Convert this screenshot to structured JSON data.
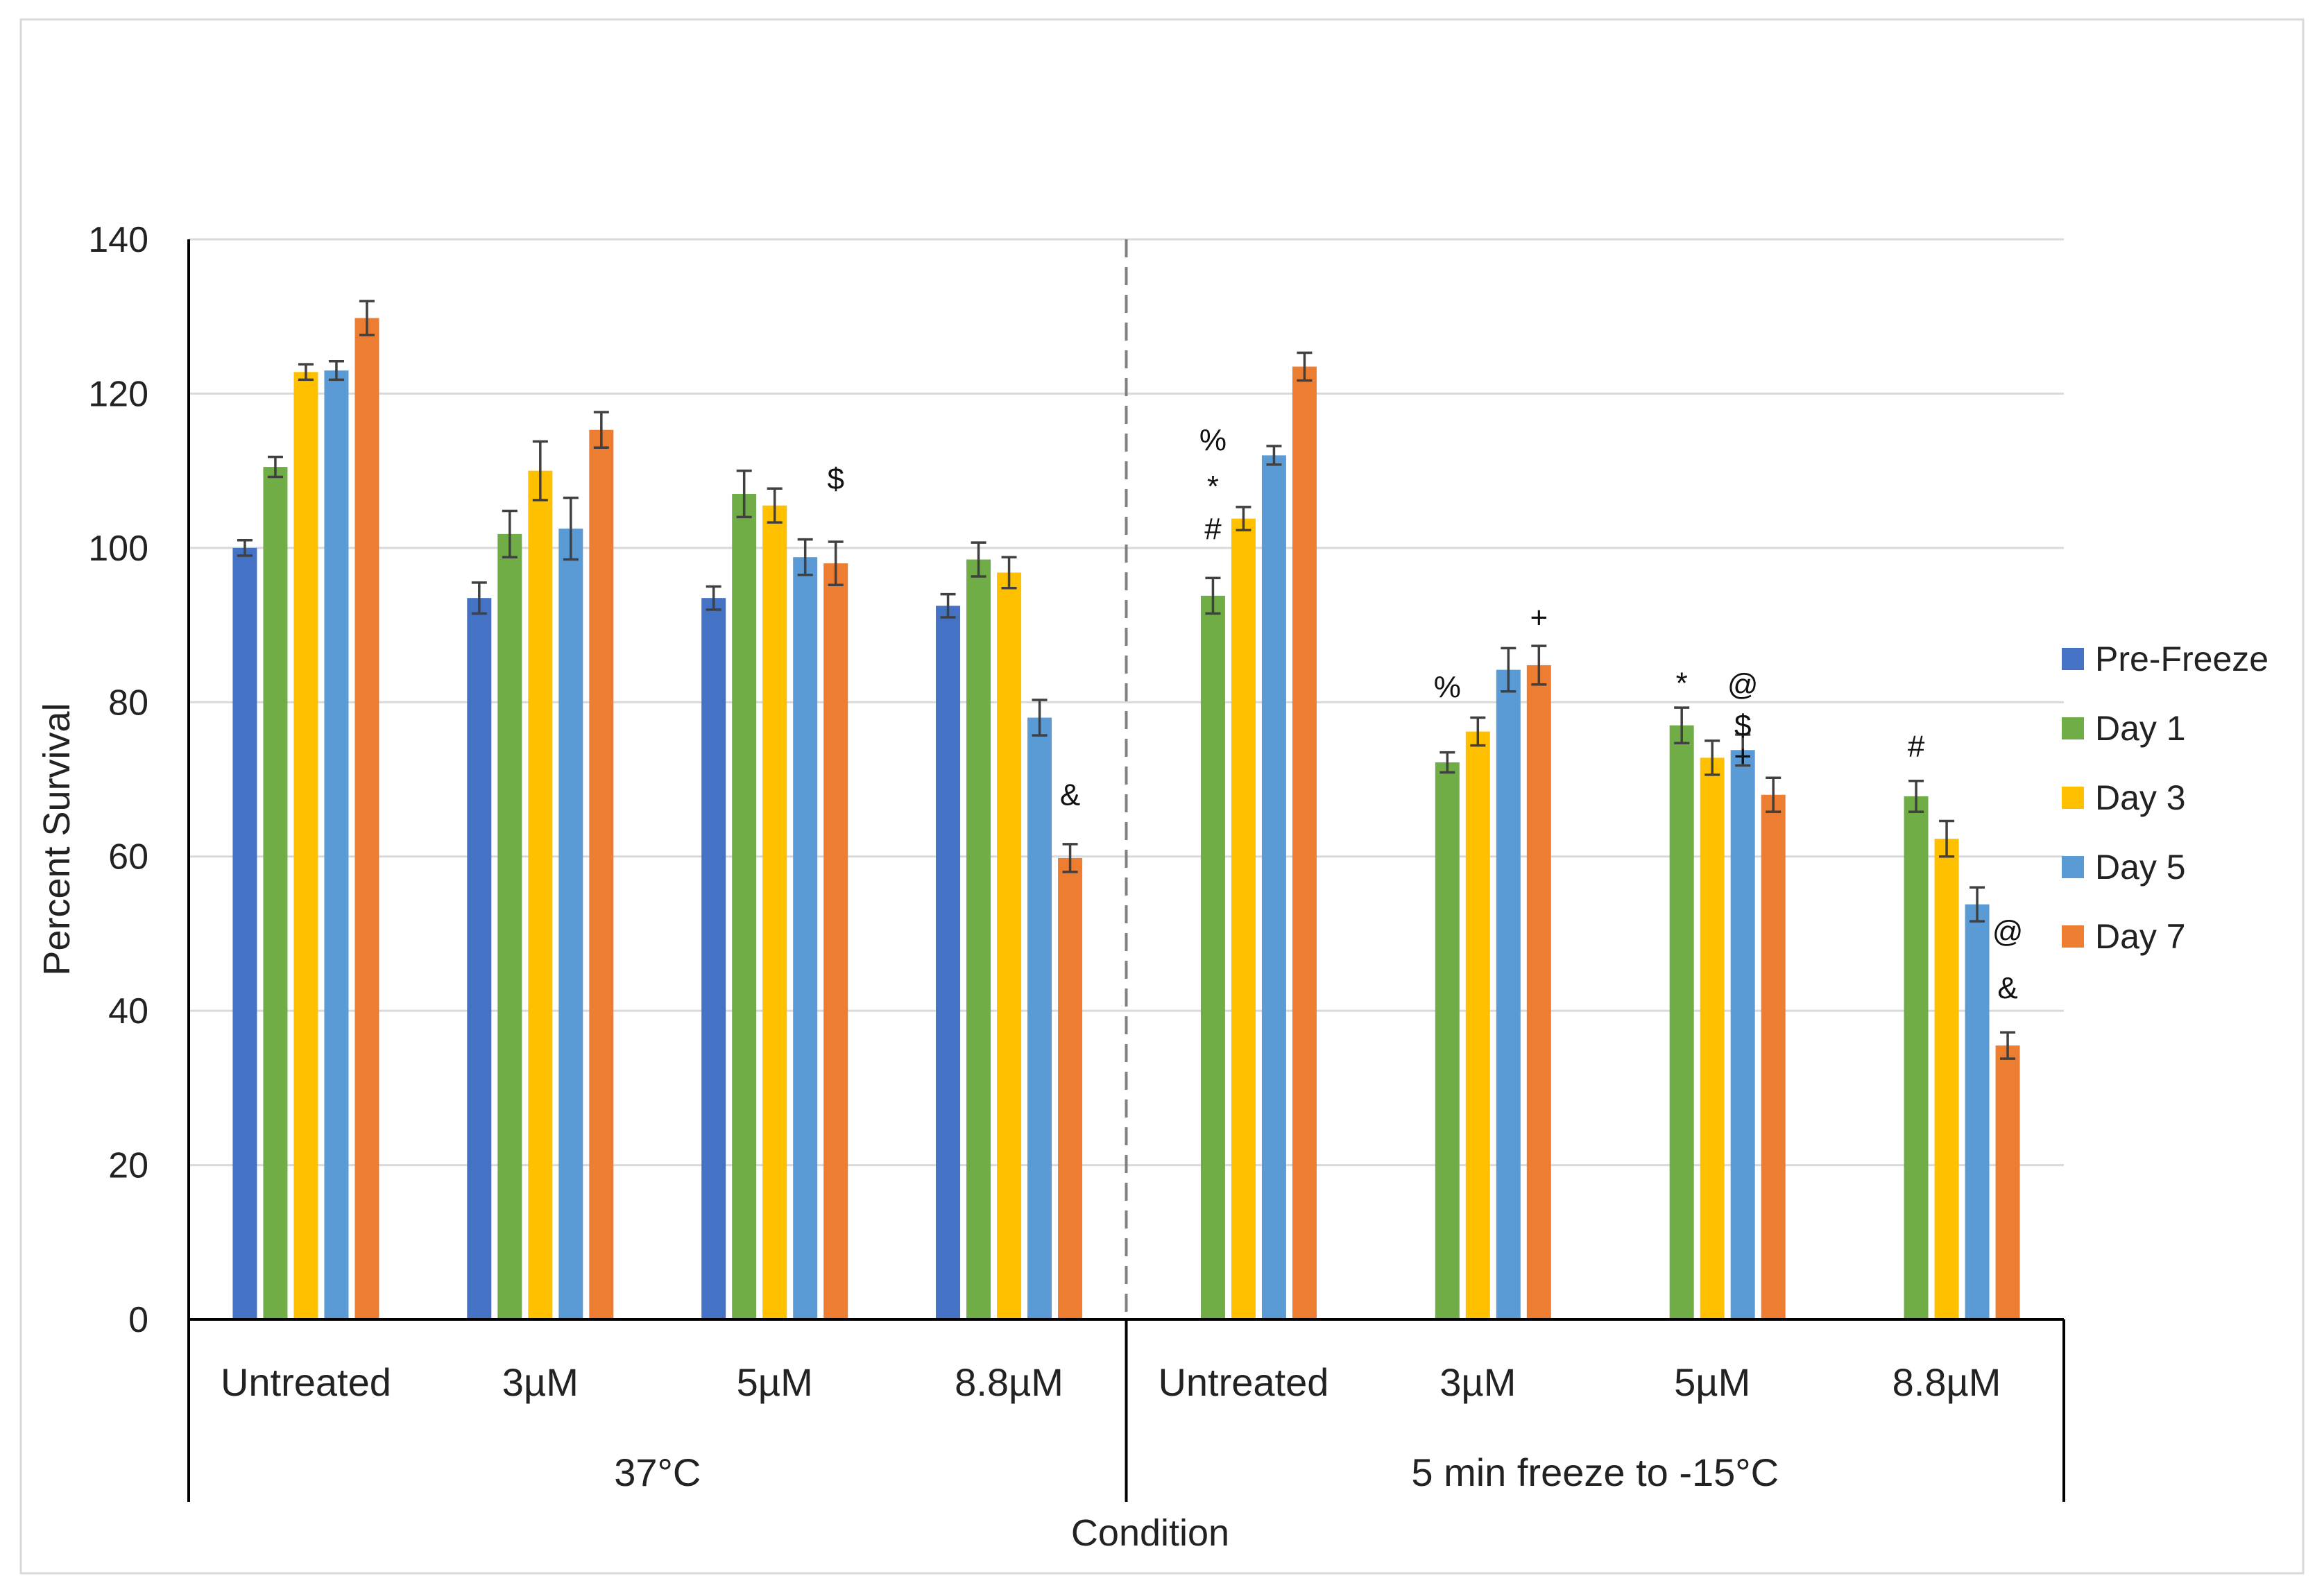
{
  "chart_data": {
    "type": "bar",
    "title": "",
    "xlabel": "Condition",
    "ylabel": "Percent Survival",
    "ylim": [
      0,
      140
    ],
    "yticks": [
      0,
      20,
      40,
      60,
      80,
      100,
      120,
      140
    ],
    "grid": true,
    "legend_position": "right",
    "groups": [
      {
        "label": "37°C",
        "categories": [
          "Untreated",
          "3µM",
          "5µM",
          "8.8µM"
        ]
      },
      {
        "label": "5 min freeze to -15°C",
        "categories": [
          "Untreated",
          "3µM",
          "5µM",
          "8.8µM"
        ]
      }
    ],
    "categories": [
      "Untreated",
      "3µM",
      "5µM",
      "8.8µM",
      "Untreated",
      "3µM",
      "5µM",
      "8.8µM"
    ],
    "series": [
      {
        "name": "Pre-Freeze",
        "color": "#4472C4",
        "values": [
          100,
          93.5,
          93.5,
          92.5,
          null,
          null,
          null,
          null
        ],
        "errors": [
          1,
          2,
          1.5,
          1.5,
          null,
          null,
          null,
          null
        ]
      },
      {
        "name": "Day 1",
        "color": "#70AD47",
        "values": [
          110.5,
          101.8,
          107,
          98.5,
          93.8,
          72.2,
          77,
          67.8
        ],
        "errors": [
          1.3,
          3,
          3,
          2.2,
          2.3,
          1.3,
          2.3,
          2
        ]
      },
      {
        "name": "Day 3",
        "color": "#FFC000",
        "values": [
          122.8,
          110,
          105.5,
          96.8,
          103.8,
          76.2,
          72.8,
          62.3
        ],
        "errors": [
          1,
          3.8,
          2.2,
          2,
          1.5,
          1.8,
          2.2,
          2.3
        ]
      },
      {
        "name": "Day 5",
        "color": "#5B9BD5",
        "values": [
          123,
          102.5,
          98.8,
          78,
          112,
          84.2,
          73.8,
          53.8
        ],
        "errors": [
          1.2,
          4,
          2.3,
          2.3,
          1.2,
          2.8,
          2,
          2.2
        ]
      },
      {
        "name": "Day 7",
        "color": "#ED7D31",
        "values": [
          129.8,
          115.3,
          98,
          59.8,
          123.5,
          84.8,
          68,
          35.5
        ],
        "errors": [
          2.2,
          2.3,
          2.8,
          1.8,
          1.8,
          2.5,
          2.2,
          1.7
        ]
      }
    ],
    "annotations": [
      {
        "text": "$",
        "category_index": 2,
        "series": "Day 7",
        "y": 109
      },
      {
        "text": "&",
        "category_index": 3,
        "series": "Day 7",
        "y": 68
      },
      {
        "text": "%",
        "category_index": 4,
        "series": "Day 1",
        "y": 114
      },
      {
        "text": "*",
        "category_index": 4,
        "series": "Day 1",
        "y": 108
      },
      {
        "text": "#",
        "category_index": 4,
        "series": "Day 1",
        "y": 102.5
      },
      {
        "text": "+",
        "category_index": 5,
        "series": "Day 7",
        "y": 91
      },
      {
        "text": "%",
        "category_index": 5,
        "series": "Day 1",
        "y": 82
      },
      {
        "text": "*",
        "category_index": 6,
        "series": "Day 1",
        "y": 82.5
      },
      {
        "text": "@",
        "category_index": 6,
        "series": "Day 5",
        "y": 82.3
      },
      {
        "text": "$",
        "category_index": 6,
        "series": "Day 5",
        "y": 77
      },
      {
        "text": "+",
        "category_index": 6,
        "series": "Day 5",
        "y": 73
      },
      {
        "text": "#",
        "category_index": 7,
        "series": "Day 1",
        "y": 74.3
      },
      {
        "text": "@",
        "category_index": 7,
        "series": "Day 7",
        "y": 50.3
      },
      {
        "text": "&",
        "category_index": 7,
        "series": "Day 7",
        "y": 43
      }
    ]
  }
}
